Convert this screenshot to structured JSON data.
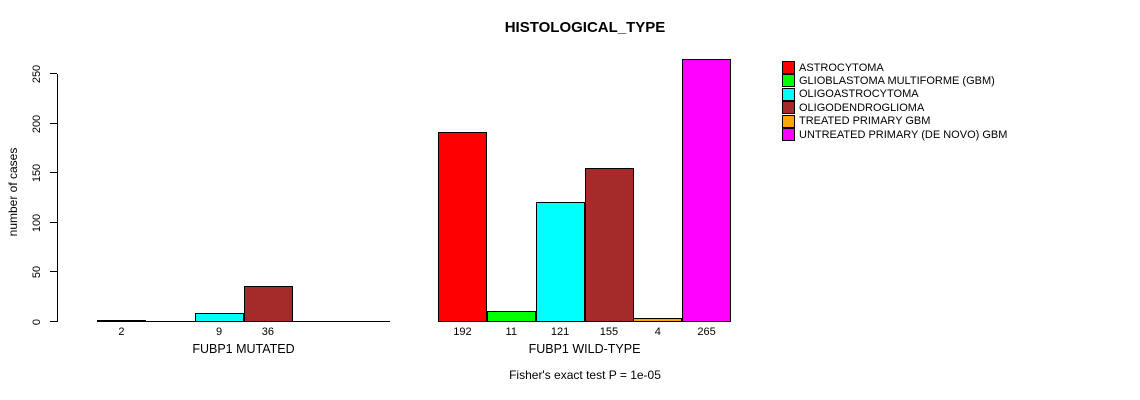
{
  "chart_data": {
    "type": "bar",
    "title": "HISTOLOGICAL_TYPE",
    "ylabel": "number of cases",
    "xlabel": "",
    "ylim": [
      0,
      250
    ],
    "yticks": [
      0,
      50,
      100,
      150,
      200,
      250
    ],
    "grid": false,
    "legend_position": "top-right",
    "bar_border_color": "#000000",
    "series": [
      {
        "name": "ASTROCYTOMA",
        "color": "#FF0000"
      },
      {
        "name": "GLIOBLASTOMA MULTIFORME (GBM)",
        "color": "#00FF00"
      },
      {
        "name": "OLIGOASTROCYTOMA",
        "color": "#00FFFF"
      },
      {
        "name": "OLIGODENDROGLIOMA",
        "color": "#A52A2A"
      },
      {
        "name": "TREATED PRIMARY GBM",
        "color": "#FFA500"
      },
      {
        "name": "UNTREATED PRIMARY (DE NOVO) GBM",
        "color": "#FF00FF"
      }
    ],
    "groups": [
      {
        "label": "FUBP1 MUTATED",
        "values": [
          2,
          0,
          9,
          36,
          0,
          0
        ]
      },
      {
        "label": "FUBP1 WILD-TYPE",
        "values": [
          192,
          11,
          121,
          155,
          4,
          265
        ]
      }
    ],
    "value_labels_shown_for_nonzero_only": true,
    "annotation": "Fisher's exact test P = 1e-05"
  }
}
